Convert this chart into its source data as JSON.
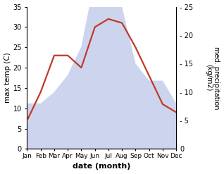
{
  "months": [
    "Jan",
    "Feb",
    "Mar",
    "Apr",
    "May",
    "Jun",
    "Jul",
    "Aug",
    "Sep",
    "Oct",
    "Nov",
    "Dec"
  ],
  "temperature": [
    7,
    14,
    23,
    23,
    20,
    30,
    32,
    31,
    25,
    18,
    11,
    9
  ],
  "precipitation": [
    8,
    8,
    10,
    13,
    18,
    30,
    34,
    25,
    15,
    12,
    12,
    8
  ],
  "temp_color": "#c0392b",
  "precip_color": "#b8c4e8",
  "ylabel_left": "max temp (C)",
  "ylabel_right": "med. precipitation\n(kg/m2)",
  "xlabel": "date (month)",
  "ylim_left": [
    0,
    35
  ],
  "ylim_right": [
    0,
    25
  ],
  "yticks_left": [
    0,
    5,
    10,
    15,
    20,
    25,
    30,
    35
  ],
  "yticks_right": [
    0,
    5,
    10,
    15,
    20,
    25
  ],
  "temp_linewidth": 1.6,
  "background_color": "#ffffff"
}
